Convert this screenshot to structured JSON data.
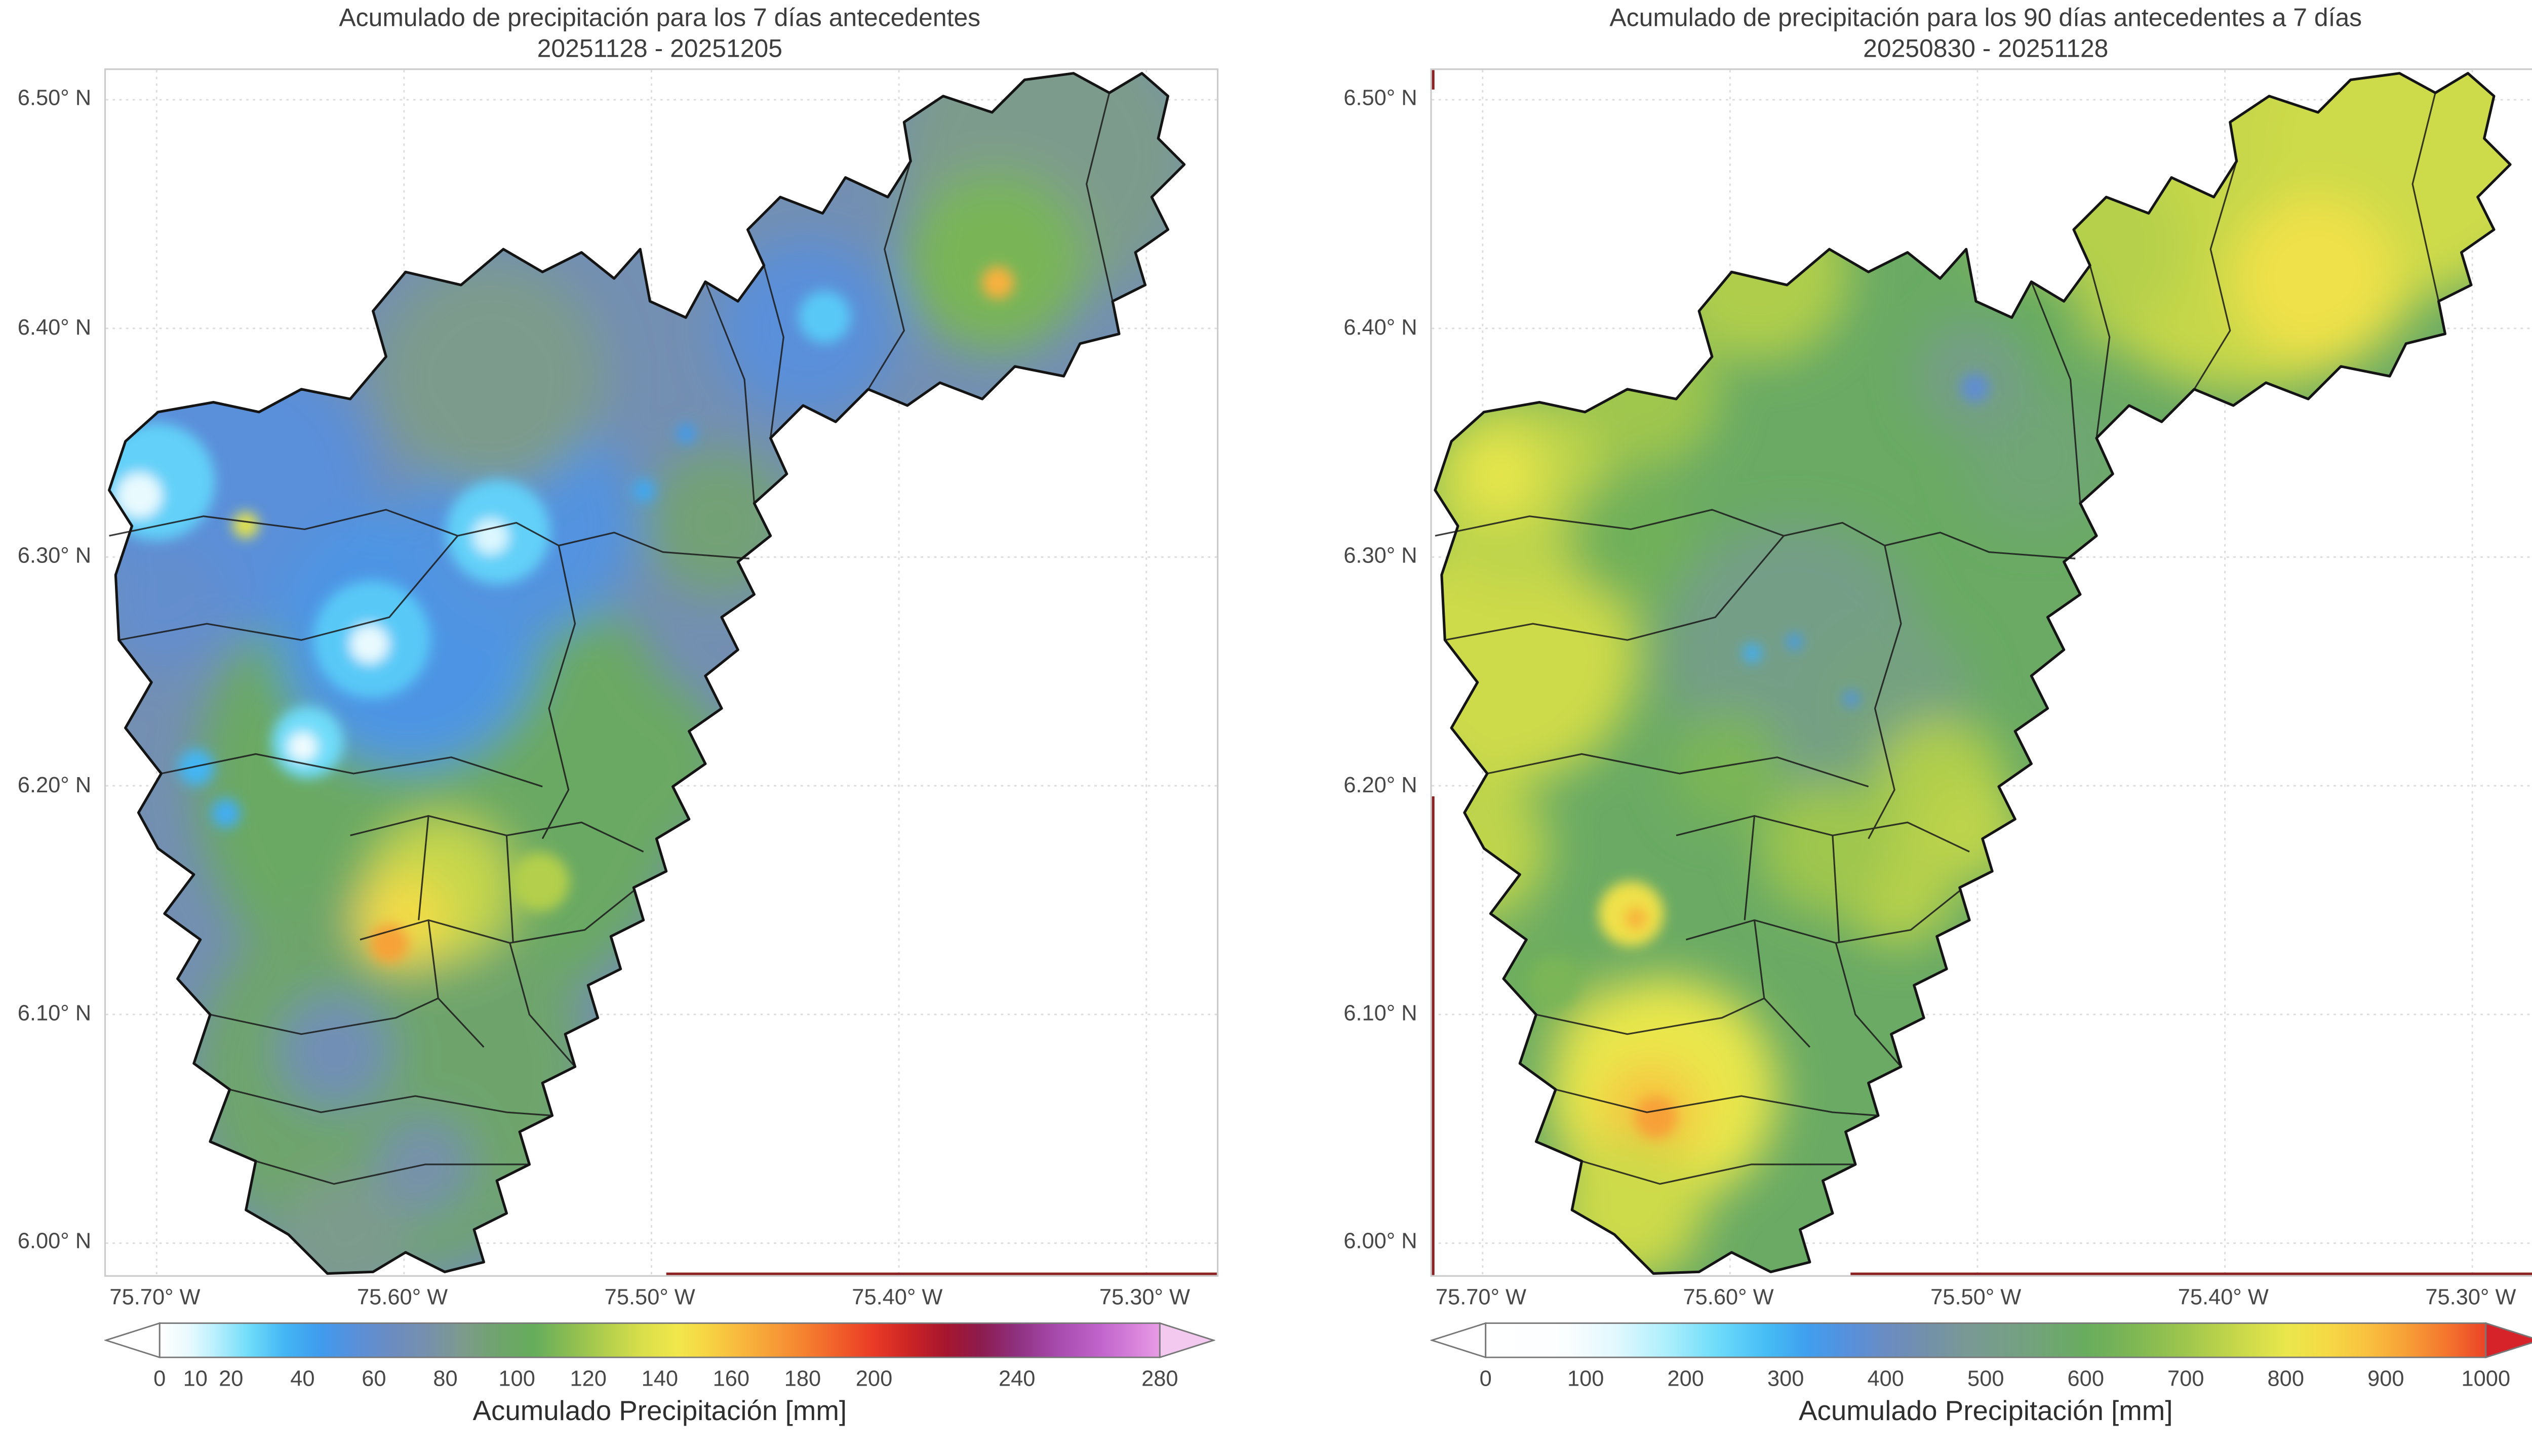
{
  "figure": {
    "background_color": "#ffffff",
    "panels": [
      {
        "title_line1": "Acumulado de precipitación para los 7 días antecedentes",
        "title_line2": "20251128 - 20251205",
        "y_ticks": [
          "6.50° N",
          "6.40° N",
          "6.30° N",
          "6.20° N",
          "6.10° N",
          "6.00° N"
        ],
        "x_ticks": [
          "75.70° W",
          "75.60° W",
          "75.50° W",
          "75.40° W",
          "75.30° W"
        ],
        "colorbar": {
          "label": "Acumulado Precipitación [mm]",
          "ticks": [
            "0",
            "10",
            "20",
            "40",
            "60",
            "80",
            "100",
            "120",
            "140",
            "160",
            "180",
            "200",
            "240",
            "280"
          ]
        }
      },
      {
        "title_line1": "Acumulado de precipitación para los 90 días antecedentes a 7 días",
        "title_line2": "20250830 - 20251128",
        "y_ticks": [
          "6.50° N",
          "6.40° N",
          "6.30° N",
          "6.20° N",
          "6.10° N",
          "6.00° N"
        ],
        "x_ticks": [
          "75.70° W",
          "75.60° W",
          "75.50° W",
          "75.40° W",
          "75.30° W"
        ],
        "colorbar": {
          "label": "Acumulado Precipitación [mm]",
          "ticks": [
            "0",
            "100",
            "200",
            "300",
            "400",
            "500",
            "600",
            "700",
            "800",
            "900",
            "1000"
          ]
        }
      }
    ]
  },
  "chart_data": [
    {
      "type": "heatmap",
      "title": "Acumulado de precipitación para los 7 días antecedentes",
      "date_range": "20251128 - 20251205",
      "unit": "mm",
      "lon_range": [
        -75.72,
        -75.27
      ],
      "lat_range": [
        5.99,
        6.51
      ],
      "x_ticks_deg": [
        -75.7,
        -75.6,
        -75.5,
        -75.4,
        -75.3
      ],
      "y_ticks_deg": [
        6.5,
        6.4,
        6.3,
        6.2,
        6.1,
        6.0
      ],
      "colorbar": {
        "min": 0,
        "max": 280,
        "tick_values": [
          0,
          10,
          20,
          40,
          60,
          80,
          100,
          120,
          140,
          160,
          180,
          200,
          240,
          280
        ],
        "under_color": "#ffffff",
        "over_color": "#f3c9f0"
      },
      "colormap_stops": [
        {
          "v": 0,
          "c": "#ffffff"
        },
        {
          "v": 8,
          "c": "#e9fafe"
        },
        {
          "v": 15,
          "c": "#bdf0fd"
        },
        {
          "v": 25,
          "c": "#6fdcf9"
        },
        {
          "v": 35,
          "c": "#43b5f4"
        },
        {
          "v": 45,
          "c": "#3f9bee"
        },
        {
          "v": 55,
          "c": "#5a8fd9"
        },
        {
          "v": 65,
          "c": "#6c8cc0"
        },
        {
          "v": 75,
          "c": "#7690ac"
        },
        {
          "v": 85,
          "c": "#7d9b8c"
        },
        {
          "v": 95,
          "c": "#6ea46c"
        },
        {
          "v": 105,
          "c": "#66ad5b"
        },
        {
          "v": 115,
          "c": "#8cbd52"
        },
        {
          "v": 125,
          "c": "#b3cf4c"
        },
        {
          "v": 135,
          "c": "#d9df4b"
        },
        {
          "v": 145,
          "c": "#f1e74b"
        },
        {
          "v": 152,
          "c": "#f6d844"
        },
        {
          "v": 160,
          "c": "#f8c03f"
        },
        {
          "v": 170,
          "c": "#f7a238"
        },
        {
          "v": 180,
          "c": "#f58330"
        },
        {
          "v": 190,
          "c": "#f15e2a"
        },
        {
          "v": 200,
          "c": "#e93a26"
        },
        {
          "v": 210,
          "c": "#cb2425"
        },
        {
          "v": 220,
          "c": "#a6162e"
        },
        {
          "v": 230,
          "c": "#8c1c4e"
        },
        {
          "v": 240,
          "c": "#8f3180"
        },
        {
          "v": 252,
          "c": "#a84cb0"
        },
        {
          "v": 264,
          "c": "#c266cd"
        },
        {
          "v": 272,
          "c": "#d57fd9"
        },
        {
          "v": 280,
          "c": "#e79ce4"
        }
      ],
      "base_mm": 72,
      "features_broad": [
        {
          "lon": -75.585,
          "lat": 6.201,
          "mm": 100,
          "r": 150
        },
        {
          "lon": -75.605,
          "lat": 6.073,
          "mm": 95,
          "r": 120
        },
        {
          "lon": -75.341,
          "lat": 6.475,
          "mm": 85,
          "r": 90
        },
        {
          "lon": -75.361,
          "lat": 6.429,
          "mm": 110,
          "r": 55
        },
        {
          "lon": -75.67,
          "lat": 6.329,
          "mm": 55,
          "r": 90
        },
        {
          "lon": -75.598,
          "lat": 6.265,
          "mm": 50,
          "r": 80
        },
        {
          "lon": -75.552,
          "lat": 6.315,
          "mm": 52,
          "r": 70
        },
        {
          "lon": -75.437,
          "lat": 6.4,
          "mm": 55,
          "r": 55
        },
        {
          "lon": -75.565,
          "lat": 6.379,
          "mm": 85,
          "r": 70
        },
        {
          "lon": -75.506,
          "lat": 6.208,
          "mm": 100,
          "r": 55
        },
        {
          "lon": -75.624,
          "lat": 6.002,
          "mm": 85,
          "r": 40
        },
        {
          "lon": -75.697,
          "lat": 6.279,
          "mm": 60,
          "r": 40
        },
        {
          "lon": -75.628,
          "lat": 6.084,
          "mm": 70,
          "r": 35
        },
        {
          "lon": -75.592,
          "lat": 6.034,
          "mm": 75,
          "r": 30
        },
        {
          "lon": -75.585,
          "lat": 6.155,
          "mm": 130,
          "r": 45
        },
        {
          "lon": -75.473,
          "lat": 6.315,
          "mm": 92,
          "r": 45
        },
        {
          "lon": -75.601,
          "lat": 6.141,
          "mm": 150,
          "r": 28
        }
      ],
      "features_detail": [
        {
          "lon": -75.7,
          "lat": 6.333,
          "mm": 28,
          "r": 36
        },
        {
          "lon": -75.707,
          "lat": 6.327,
          "mm": 8,
          "r": 14
        },
        {
          "lon": -75.562,
          "lat": 6.311,
          "mm": 28,
          "r": 32
        },
        {
          "lon": -75.565,
          "lat": 6.309,
          "mm": 10,
          "r": 11
        },
        {
          "lon": -75.613,
          "lat": 6.264,
          "mm": 30,
          "r": 36
        },
        {
          "lon": -75.614,
          "lat": 6.262,
          "mm": 8,
          "r": 12
        },
        {
          "lon": -75.639,
          "lat": 6.219,
          "mm": 25,
          "r": 22
        },
        {
          "lon": -75.641,
          "lat": 6.217,
          "mm": 5,
          "r": 9
        },
        {
          "lon": -75.43,
          "lat": 6.405,
          "mm": 30,
          "r": 16
        },
        {
          "lon": -75.684,
          "lat": 6.208,
          "mm": 35,
          "r": 11
        },
        {
          "lon": -75.672,
          "lat": 6.188,
          "mm": 38,
          "r": 9
        },
        {
          "lon": -75.606,
          "lat": 6.131,
          "mm": 170,
          "r": 12
        },
        {
          "lon": -75.545,
          "lat": 6.158,
          "mm": 125,
          "r": 18
        },
        {
          "lon": -75.36,
          "lat": 6.42,
          "mm": 165,
          "r": 10
        },
        {
          "lon": -75.664,
          "lat": 6.314,
          "mm": 140,
          "r": 8
        },
        {
          "lon": -75.503,
          "lat": 6.329,
          "mm": 40,
          "r": 7
        },
        {
          "lon": -75.486,
          "lat": 6.354,
          "mm": 45,
          "r": 6
        }
      ]
    },
    {
      "type": "heatmap",
      "title": "Acumulado de precipitación para los 90 días antecedentes a 7 días",
      "date_range": "20250830 - 20251128",
      "unit": "mm",
      "lon_range": [
        -75.72,
        -75.27
      ],
      "lat_range": [
        5.99,
        6.51
      ],
      "x_ticks_deg": [
        -75.7,
        -75.6,
        -75.5,
        -75.4,
        -75.3
      ],
      "y_ticks_deg": [
        6.5,
        6.4,
        6.3,
        6.2,
        6.1,
        6.0
      ],
      "colorbar": {
        "min": 0,
        "max": 1000,
        "tick_values": [
          0,
          100,
          200,
          300,
          400,
          500,
          600,
          700,
          800,
          900,
          1000
        ],
        "under_color": "#ffffff",
        "over_color": "#d6232a"
      },
      "colormap_stops": [
        {
          "v": 0,
          "c": "#ffffff"
        },
        {
          "v": 80,
          "c": "#fbfeff"
        },
        {
          "v": 130,
          "c": "#e2f8fe"
        },
        {
          "v": 180,
          "c": "#aeeffc"
        },
        {
          "v": 230,
          "c": "#6fdcf9"
        },
        {
          "v": 280,
          "c": "#46bdf5"
        },
        {
          "v": 320,
          "c": "#3fa0ef"
        },
        {
          "v": 360,
          "c": "#5590dd"
        },
        {
          "v": 400,
          "c": "#6a8cc2"
        },
        {
          "v": 440,
          "c": "#7390ab"
        },
        {
          "v": 480,
          "c": "#789995"
        },
        {
          "v": 540,
          "c": "#74a180"
        },
        {
          "v": 600,
          "c": "#68ac5e"
        },
        {
          "v": 650,
          "c": "#7fb754"
        },
        {
          "v": 700,
          "c": "#9fc64d"
        },
        {
          "v": 750,
          "c": "#c6d74a"
        },
        {
          "v": 800,
          "c": "#e9e74c"
        },
        {
          "v": 840,
          "c": "#f5da45"
        },
        {
          "v": 880,
          "c": "#f8c23f"
        },
        {
          "v": 920,
          "c": "#f7a037"
        },
        {
          "v": 960,
          "c": "#f4762e"
        },
        {
          "v": 1000,
          "c": "#ea4427"
        }
      ],
      "base_mm": 590,
      "features_broad": [
        {
          "lon": -75.69,
          "lat": 6.258,
          "mm": 760,
          "r": 80
        },
        {
          "lon": -75.686,
          "lat": 6.329,
          "mm": 740,
          "r": 60
        },
        {
          "lon": -75.693,
          "lat": 6.336,
          "mm": 800,
          "r": 25
        },
        {
          "lon": -75.588,
          "lat": 6.425,
          "mm": 720,
          "r": 55
        },
        {
          "lon": -75.634,
          "lat": 6.372,
          "mm": 700,
          "r": 45
        },
        {
          "lon": -75.39,
          "lat": 6.465,
          "mm": 750,
          "r": 130
        },
        {
          "lon": -75.324,
          "lat": 6.479,
          "mm": 760,
          "r": 90
        },
        {
          "lon": -75.364,
          "lat": 6.422,
          "mm": 820,
          "r": 50
        },
        {
          "lon": -75.456,
          "lat": 6.436,
          "mm": 730,
          "r": 60
        },
        {
          "lon": -75.482,
          "lat": 6.4,
          "mm": 600,
          "r": 40
        },
        {
          "lon": -75.476,
          "lat": 6.344,
          "mm": 560,
          "r": 45
        },
        {
          "lon": -75.502,
          "lat": 6.379,
          "mm": 520,
          "r": 35
        },
        {
          "lon": -75.574,
          "lat": 6.258,
          "mm": 520,
          "r": 80
        },
        {
          "lon": -75.535,
          "lat": 6.237,
          "mm": 540,
          "r": 50
        },
        {
          "lon": -75.64,
          "lat": 6.308,
          "mm": 620,
          "r": 40
        },
        {
          "lon": -75.601,
          "lat": 6.208,
          "mm": 640,
          "r": 35
        },
        {
          "lon": -75.515,
          "lat": 6.201,
          "mm": 720,
          "r": 40
        },
        {
          "lon": -75.502,
          "lat": 6.18,
          "mm": 740,
          "r": 30
        },
        {
          "lon": -75.532,
          "lat": 6.155,
          "mm": 730,
          "r": 35
        },
        {
          "lon": -75.561,
          "lat": 6.173,
          "mm": 700,
          "r": 40
        },
        {
          "lon": -75.703,
          "lat": 6.173,
          "mm": 740,
          "r": 45
        },
        {
          "lon": -75.673,
          "lat": 6.112,
          "mm": 620,
          "r": 30
        },
        {
          "lon": -75.627,
          "lat": 6.066,
          "mm": 800,
          "r": 70
        },
        {
          "lon": -75.632,
          "lat": 6.057,
          "mm": 880,
          "r": 30
        },
        {
          "lon": -75.64,
          "lat": 6.016,
          "mm": 760,
          "r": 45
        }
      ],
      "features_detail": [
        {
          "lon": -75.501,
          "lat": 6.374,
          "mm": 380,
          "r": 9
        },
        {
          "lon": -75.591,
          "lat": 6.258,
          "mm": 300,
          "r": 6
        },
        {
          "lon": -75.574,
          "lat": 6.263,
          "mm": 330,
          "r": 5
        },
        {
          "lon": -75.551,
          "lat": 6.238,
          "mm": 350,
          "r": 5
        },
        {
          "lon": -75.64,
          "lat": 6.144,
          "mm": 820,
          "r": 20
        },
        {
          "lon": -75.638,
          "lat": 6.142,
          "mm": 900,
          "r": 7
        },
        {
          "lon": -75.63,
          "lat": 6.055,
          "mm": 920,
          "r": 13
        },
        {
          "lon": -75.671,
          "lat": 6.114,
          "mm": 640,
          "r": 15
        }
      ]
    }
  ]
}
